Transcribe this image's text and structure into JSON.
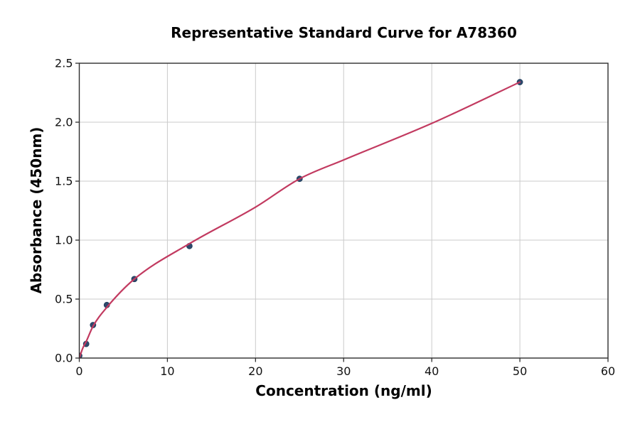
{
  "figure": {
    "background": "#ffffff"
  },
  "chart_data": {
    "type": "scatter",
    "title": "Representative Standard Curve for A78360",
    "xlabel": "Concentration (ng/ml)",
    "ylabel": "Absorbance (450nm)",
    "xlim": [
      0,
      60
    ],
    "ylim": [
      0,
      2.5
    ],
    "x_ticks": [
      0,
      10,
      20,
      30,
      40,
      50,
      60
    ],
    "y_ticks": [
      0,
      0.5,
      1,
      1.5,
      2,
      2.5
    ],
    "x_tick_decimals": 0,
    "y_tick_decimals": 1,
    "grid": true,
    "legend_position": "none",
    "series": [
      {
        "name": "standard-points",
        "type": "scatter",
        "color": "#2f4a6e",
        "marker_edge": "#22405e",
        "points": [
          [
            0,
            0.02
          ],
          [
            0.78,
            0.12
          ],
          [
            1.56,
            0.28
          ],
          [
            3.125,
            0.45
          ],
          [
            6.25,
            0.67
          ],
          [
            12.5,
            0.95
          ],
          [
            25,
            1.52
          ],
          [
            50,
            2.34
          ]
        ]
      },
      {
        "name": "fit-curve",
        "type": "line",
        "color": "#c23a60",
        "points": [
          [
            0,
            0
          ],
          [
            0.4,
            0.085
          ],
          [
            0.78,
            0.14
          ],
          [
            1.56,
            0.27
          ],
          [
            3.125,
            0.43
          ],
          [
            6.25,
            0.67
          ],
          [
            12.5,
            0.97
          ],
          [
            20,
            1.28
          ],
          [
            25,
            1.52
          ],
          [
            30,
            1.68
          ],
          [
            40,
            1.99
          ],
          [
            50,
            2.34
          ]
        ]
      }
    ],
    "colors": {
      "grid": "#cbcbcb",
      "spine": "#2e2e2e",
      "tick_text": "#111111",
      "title_text": "#000000"
    }
  }
}
